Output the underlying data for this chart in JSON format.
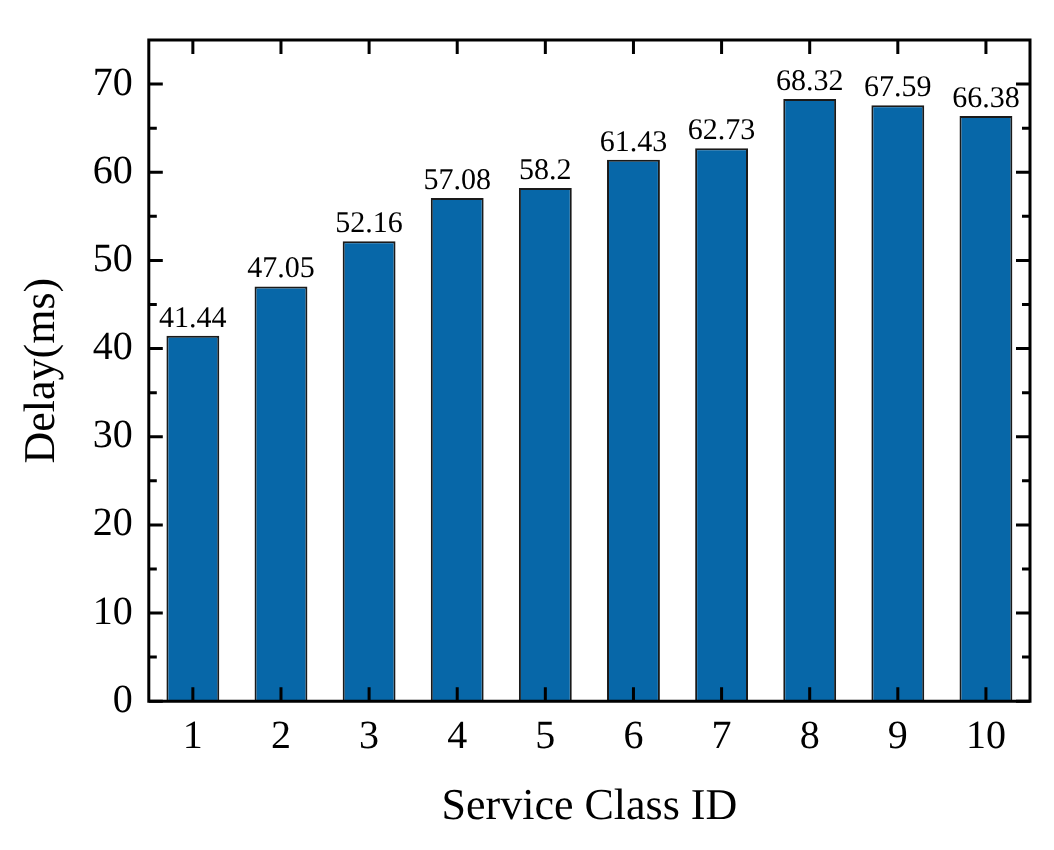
{
  "chart_data": {
    "type": "bar",
    "xlabel": "Service Class ID",
    "ylabel": "Delay(ms)",
    "categories": [
      "1",
      "2",
      "3",
      "4",
      "5",
      "6",
      "7",
      "8",
      "9",
      "10"
    ],
    "values": [
      41.44,
      47.05,
      52.16,
      57.08,
      58.2,
      61.43,
      62.73,
      68.32,
      67.59,
      66.38
    ],
    "value_labels": [
      "41.44",
      "47.05",
      "52.16",
      "57.08",
      "58.2",
      "61.43",
      "62.73",
      "68.32",
      "67.59",
      "66.38"
    ],
    "color": "#0767a8",
    "ylim": [
      0,
      75
    ],
    "yticks": [
      0,
      {
        "value": 5,
        "label": null
      },
      10,
      {
        "value": 15,
        "label": null
      },
      20,
      {
        "value": 25,
        "label": null
      },
      30,
      {
        "value": 35,
        "label": null
      },
      40,
      {
        "value": 45,
        "label": null
      },
      50,
      {
        "value": 55,
        "label": null
      },
      60,
      {
        "value": 65,
        "label": null
      },
      70
    ],
    "grid": false,
    "legend": false
  }
}
